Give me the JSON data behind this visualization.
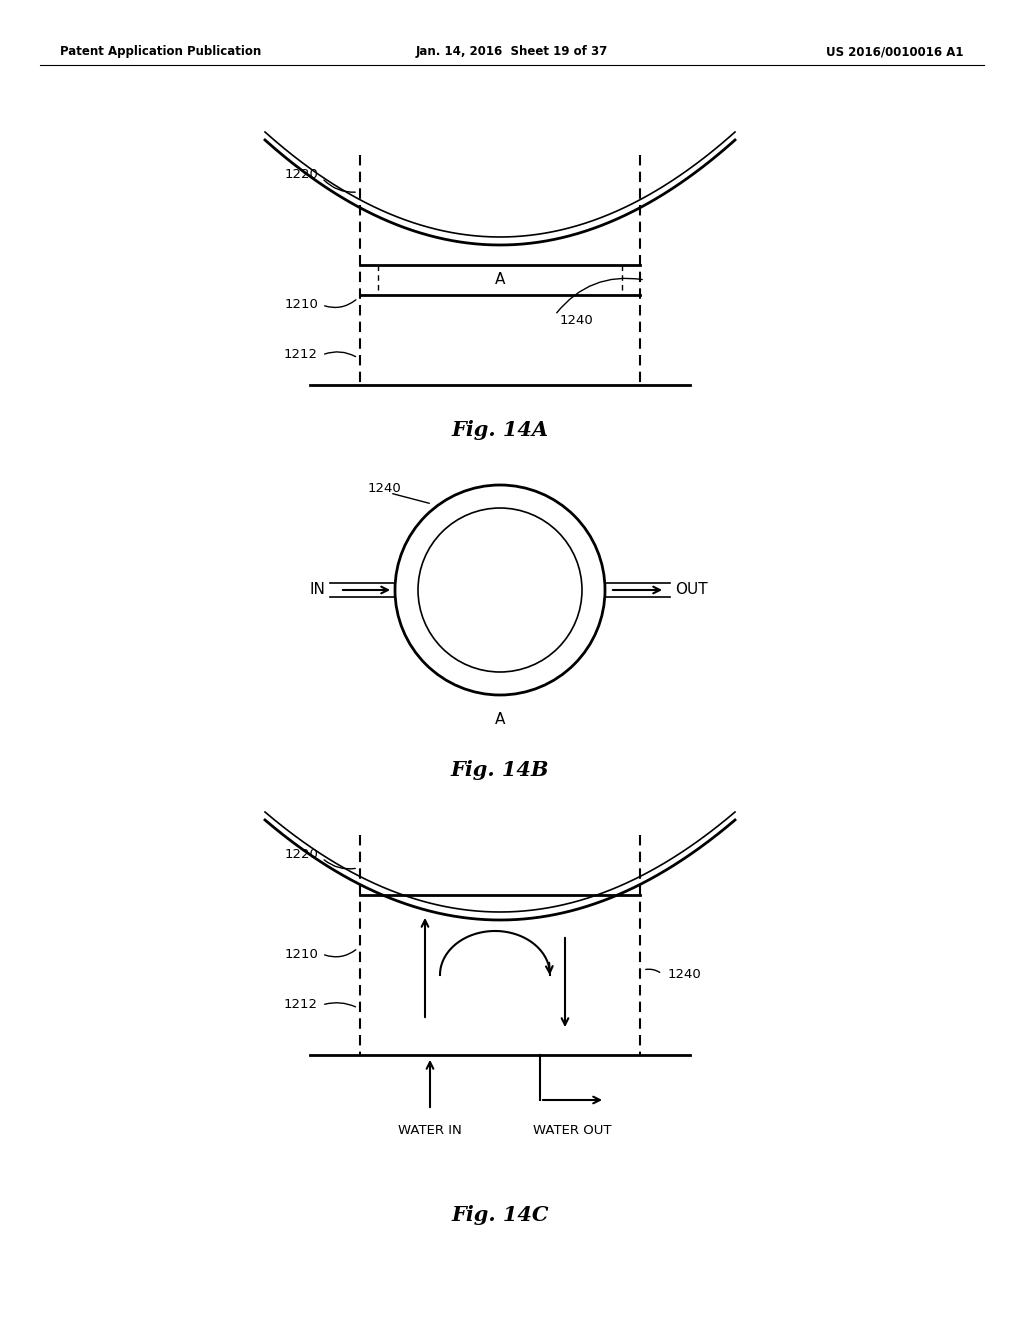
{
  "bg_color": "#ffffff",
  "header_left": "Patent Application Publication",
  "header_mid": "Jan. 14, 2016  Sheet 19 of 37",
  "header_right": "US 2016/0010016 A1",
  "fig14A_caption": "Fig. 14A",
  "fig14B_caption": "Fig. 14B",
  "fig14C_caption": "Fig. 14C",
  "label_1220": "1220",
  "label_1210": "1210",
  "label_1212": "1212",
  "label_1240": "1240",
  "label_A": "A",
  "label_IN": "IN",
  "label_OUT": "OUT",
  "label_WATER_IN": "WATER IN",
  "label_WATER_OUT": "WATER OUT"
}
